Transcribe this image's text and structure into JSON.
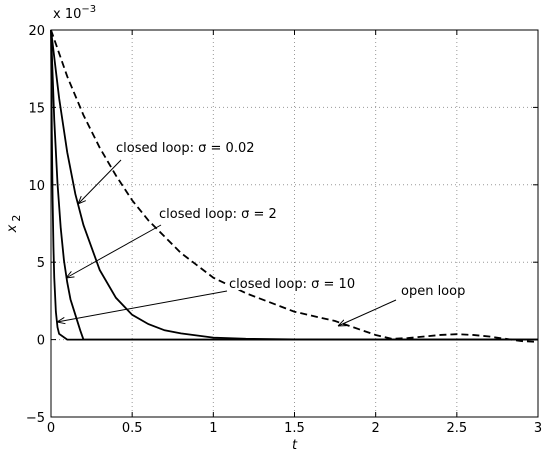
{
  "chart_data": {
    "type": "line",
    "y_multiplier": {
      "base": "x 10",
      "exponent": "−3"
    },
    "xlabel": "t",
    "ylabel": {
      "base": "x",
      "subscript": "2"
    },
    "xlim": [
      0,
      3
    ],
    "ylim": [
      -5,
      20
    ],
    "xticks": [
      0,
      0.5,
      1,
      1.5,
      2,
      2.5,
      3
    ],
    "yticks": [
      {
        "value": -5,
        "label": "−5"
      },
      0,
      5,
      10,
      15,
      20
    ],
    "grid": true,
    "series": [
      {
        "color": "#000000",
        "dash": true,
        "x": [
          0,
          0.1,
          0.2,
          0.3,
          0.4,
          0.5,
          0.6,
          0.8,
          1,
          1.2,
          1.5,
          1.75,
          2,
          2.1,
          2.2,
          2.3,
          2.4,
          2.5,
          2.6,
          2.7,
          2.8,
          2.9,
          3
        ],
        "values": [
          20,
          17,
          14.5,
          12.4,
          10.6,
          9,
          7.7,
          5.6,
          4,
          3,
          1.8,
          1.2,
          0.3,
          0.05,
          0.1,
          0.2,
          0.3,
          0.35,
          0.3,
          0.2,
          0.05,
          -0.1,
          -0.15
        ]
      },
      {
        "color": "#000000",
        "dash": false,
        "x": [
          0,
          0.05,
          0.1,
          0.15,
          0.2,
          0.3,
          0.4,
          0.5,
          0.6,
          0.7,
          0.8,
          1,
          1.2,
          1.5,
          3
        ],
        "values": [
          20,
          15.6,
          12.1,
          9.4,
          7.4,
          4.5,
          2.7,
          1.6,
          1,
          0.6,
          0.4,
          0.13,
          0.05,
          0.01,
          0
        ]
      },
      {
        "color": "#000000",
        "dash": false,
        "x": [
          0,
          0.02,
          0.04,
          0.06,
          0.08,
          0.1,
          0.12,
          0.15,
          0.18,
          0.2,
          3
        ],
        "values": [
          20,
          14.2,
          10.1,
          7.2,
          5.1,
          3.7,
          2.6,
          1.6,
          0.6,
          0,
          0
        ]
      },
      {
        "color": "#000000",
        "dash": false,
        "x": [
          0,
          0.005,
          0.01,
          0.015,
          0.02,
          0.03,
          0.04,
          0.05,
          0.1,
          3
        ],
        "values": [
          20,
          13.4,
          9,
          6,
          4,
          1.8,
          0.8,
          0.37,
          0,
          0
        ]
      }
    ],
    "annotations": [
      "closed loop: σ = 0.02",
      "closed loop: σ = 2",
      "closed loop: σ = 10",
      "open loop"
    ]
  }
}
